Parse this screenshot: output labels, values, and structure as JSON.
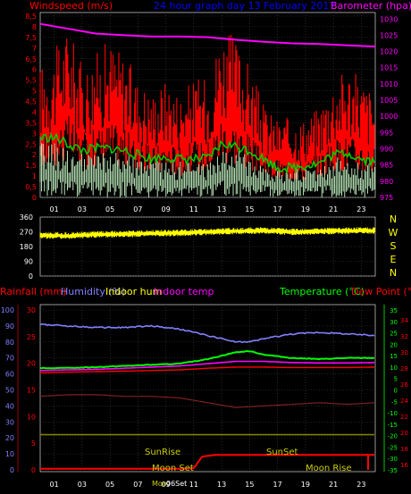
{
  "colors": {
    "background": "#000000",
    "wind": "#ff0000",
    "baro": "#ff00ff",
    "avg": "#00cc00",
    "gust_lo": "#ccffcc",
    "dir": "#ffff00",
    "title": "#0000ff",
    "humidity": "#8080ff",
    "temp": "#00ff00",
    "dew": "#ff0000",
    "indoor_temp": "#ff00ff",
    "indoor_hum": "#802020",
    "rain": "#ff0000",
    "solar": "#808000",
    "grid": "#444444",
    "axis": "#ffffff"
  },
  "header": {
    "wind_label": "Windspeed (m/s)",
    "title": "24 hour graph day 13 February 2017",
    "baro_label": "Barometer (hpa)"
  },
  "lower_header": {
    "rain_label": "Rainfall (mm)",
    "humidity_label": "Humidity (%)",
    "indoor_hum_label": "Indoor hum",
    "indoor_temp_label": "Indoor temp",
    "temp_label": "Temperature (°C)",
    "dew_label": "Dew Point (°C)"
  },
  "compass": [
    "N",
    "W",
    "S",
    "E",
    "N"
  ],
  "time_ticks": [
    "01",
    "03",
    "05",
    "07",
    "09",
    "11",
    "13",
    "15",
    "17",
    "19",
    "21",
    "23"
  ],
  "annotations": {
    "sunrise": "SunRise",
    "sunset": "SunSet",
    "moonset": "Moon Set",
    "moonrise": "Moon Rise",
    "moonset_short": "Moo",
    "moonset_time": "06Set"
  },
  "chart_data": [
    {
      "type": "line",
      "name": "wind",
      "x_range": [
        0,
        24
      ],
      "left_axis": {
        "ticks": [
          "0",
          "0,5",
          "1",
          "1,5",
          "2",
          "2,5",
          "3",
          "3,5",
          "4",
          "4,5",
          "5",
          "5,5",
          "6",
          "6,5",
          "7",
          "7,5",
          "8",
          "8,5"
        ],
        "ylim": [
          0,
          8.5
        ]
      },
      "right_axis": {
        "ticks": [
          "975",
          "980",
          "985",
          "990",
          "995",
          "1000",
          "1005",
          "1010",
          "1015",
          "1020",
          "1025",
          "1030"
        ],
        "ylim": [
          975,
          1032
        ]
      },
      "series": [
        {
          "key": "gust",
          "x": [
            0,
            1,
            2,
            3,
            4,
            5,
            6,
            7,
            8,
            9,
            10,
            11,
            12,
            13,
            14,
            15,
            16,
            17,
            18,
            19,
            20,
            21,
            22,
            23,
            24
          ],
          "values": [
            5.0,
            5.5,
            6.5,
            5.0,
            5.5,
            6.0,
            5.5,
            4.5,
            4.0,
            4.5,
            4.0,
            4.5,
            4.5,
            6.5,
            6.0,
            5.0,
            3.5,
            3.0,
            3.0,
            3.0,
            3.5,
            4.5,
            5.0,
            4.5,
            4.0
          ]
        },
        {
          "key": "avg",
          "x": [
            0,
            1,
            2,
            3,
            4,
            5,
            6,
            7,
            8,
            9,
            10,
            11,
            12,
            13,
            14,
            15,
            16,
            17,
            18,
            19,
            20,
            21,
            22,
            23,
            24
          ],
          "values": [
            2.8,
            2.8,
            2.5,
            2.2,
            2.3,
            2.3,
            2.2,
            2.0,
            1.8,
            1.9,
            1.8,
            1.8,
            1.8,
            2.5,
            2.4,
            2.2,
            1.8,
            1.4,
            1.4,
            1.5,
            1.6,
            2.0,
            2.1,
            1.8,
            1.7
          ]
        },
        {
          "key": "baro",
          "x": [
            0,
            2,
            4,
            6,
            8,
            10,
            12,
            14,
            16,
            18,
            20,
            22,
            24
          ],
          "values": [
            1028.5,
            1027.0,
            1025.5,
            1025.0,
            1024.6,
            1024.6,
            1024.4,
            1023.6,
            1023.0,
            1022.5,
            1022.3,
            1021.9,
            1021.5
          ]
        }
      ]
    },
    {
      "type": "scatter",
      "name": "direction",
      "axis": {
        "ticks": [
          "0",
          "90",
          "180",
          "270",
          "360"
        ],
        "ylim": [
          0,
          360
        ]
      },
      "x": [
        0,
        2,
        4,
        6,
        8,
        10,
        12,
        14,
        16,
        18,
        20,
        22,
        24
      ],
      "values": [
        250,
        248,
        255,
        258,
        262,
        266,
        270,
        276,
        280,
        272,
        275,
        278,
        280
      ]
    },
    {
      "type": "line",
      "name": "climate",
      "left_axis": {
        "ticks": [
          "0",
          "10",
          "20",
          "30",
          "40",
          "50",
          "60",
          "70",
          "80",
          "90",
          "100"
        ],
        "ylim": [
          0,
          100
        ]
      },
      "left_axis_rain": {
        "ticks": [
          "0",
          "5",
          "10",
          "15",
          "20",
          "25",
          "30"
        ],
        "ylim": [
          0,
          30
        ]
      },
      "right_axis_temp": {
        "ticks": [
          "-35",
          "-30",
          "-25",
          "-20",
          "-15",
          "-10",
          "-5",
          "0",
          "5",
          "10",
          "15",
          "20",
          "25",
          "30",
          "35"
        ],
        "ylim": [
          -35,
          35
        ]
      },
      "right_axis_dew": {
        "ticks": [
          "16",
          "18",
          "20",
          "22",
          "24",
          "26",
          "28",
          "30",
          "32",
          "34"
        ],
        "ylim": [
          16,
          35
        ]
      },
      "series": [
        {
          "key": "humidity",
          "x": [
            0,
            2,
            4,
            6,
            8,
            10,
            12,
            14,
            15,
            16,
            18,
            20,
            22,
            24
          ],
          "values": [
            91,
            90,
            89,
            89,
            90,
            88,
            84,
            80,
            80,
            82,
            85,
            86,
            85,
            84
          ]
        },
        {
          "key": "temp",
          "x": [
            0,
            2,
            4,
            6,
            8,
            10,
            12,
            14,
            15,
            16,
            18,
            20,
            22,
            24
          ],
          "values": [
            9.5,
            9.6,
            10,
            10.5,
            11,
            11.5,
            13.5,
            16.5,
            17,
            15.5,
            14,
            13.5,
            14,
            14
          ]
        },
        {
          "key": "indoor_temp",
          "x": [
            0,
            2,
            4,
            6,
            8,
            10,
            12,
            14,
            16,
            18,
            20,
            22,
            24
          ],
          "values": [
            8.5,
            8.8,
            9,
            9.5,
            10,
            10.5,
            11.5,
            12.5,
            12.5,
            12,
            11.8,
            11.8,
            12
          ]
        },
        {
          "key": "indoor_hum",
          "x": [
            0,
            2,
            4,
            6,
            8,
            10,
            12,
            14,
            16,
            18,
            20,
            22,
            24
          ],
          "values": [
            46,
            47,
            47,
            46,
            46,
            45,
            42,
            39,
            40,
            41,
            42,
            41,
            42
          ]
        },
        {
          "key": "dew",
          "x": [
            0,
            2,
            4,
            6,
            8,
            10,
            12,
            14,
            16,
            18,
            20,
            22,
            24
          ],
          "values": [
            7.5,
            7.8,
            8,
            8.2,
            8.5,
            8.8,
            9.5,
            10,
            10,
            9.8,
            9.8,
            9.8,
            10
          ]
        },
        {
          "key": "solar",
          "x": [
            0,
            24
          ],
          "values": [
            22,
            22
          ]
        },
        {
          "key": "rain",
          "x": [
            0,
            9.5,
            11,
            11.6,
            12.5,
            24
          ],
          "values": [
            0.2,
            0.2,
            0.3,
            2.5,
            2.8,
            2.8
          ]
        }
      ]
    }
  ]
}
